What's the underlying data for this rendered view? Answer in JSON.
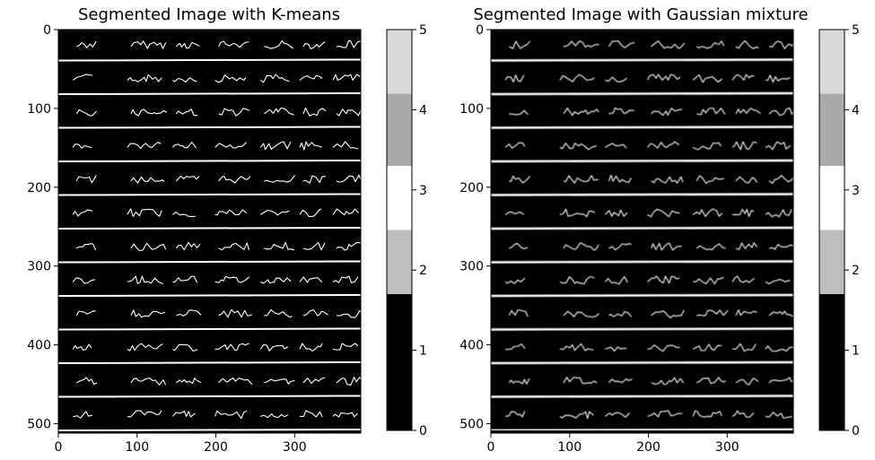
{
  "chart_data": [
    {
      "type": "heatmap",
      "title": "Segmented Image with K-means",
      "xlabel": "",
      "ylabel": "",
      "xlim": [
        0,
        384
      ],
      "ylim": [
        512,
        0
      ],
      "xticks": [
        0,
        100,
        200,
        300
      ],
      "yticks": [
        0,
        100,
        200,
        300,
        400,
        500
      ],
      "image_content": "handwritten lines repeating 'quick brown fox jumps over the lazy dog' in white on black",
      "text_lines": 12,
      "colorbar": {
        "ticks": [
          0,
          1,
          2,
          3,
          4,
          5
        ],
        "range": [
          0,
          5
        ],
        "levels": [
          {
            "from": 0,
            "to": 1.7,
            "color": "#000000"
          },
          {
            "from": 1.7,
            "to": 2.5,
            "color": "#bdbdbd"
          },
          {
            "from": 2.5,
            "to": 3.3,
            "color": "#ffffff"
          },
          {
            "from": 3.3,
            "to": 4.2,
            "color": "#a9a9a9"
          },
          {
            "from": 4.2,
            "to": 5,
            "color": "#d9d9d9"
          }
        ]
      }
    },
    {
      "type": "heatmap",
      "title": "Segmented Image with Gaussian mixture",
      "xlabel": "",
      "ylabel": "",
      "xlim": [
        0,
        384
      ],
      "ylim": [
        512,
        0
      ],
      "xticks": [
        0,
        100,
        200,
        300
      ],
      "yticks": [
        0,
        100,
        200,
        300,
        400,
        500
      ],
      "image_content": "handwritten lines repeating 'quick brown fox jumps over the lazy dog' in white on black",
      "text_lines": 12,
      "colorbar": {
        "ticks": [
          0,
          1,
          2,
          3,
          4,
          5
        ],
        "range": [
          0,
          5
        ],
        "levels": [
          {
            "from": 0,
            "to": 1.7,
            "color": "#000000"
          },
          {
            "from": 1.7,
            "to": 2.5,
            "color": "#bdbdbd"
          },
          {
            "from": 2.5,
            "to": 3.3,
            "color": "#ffffff"
          },
          {
            "from": 3.3,
            "to": 4.2,
            "color": "#a9a9a9"
          },
          {
            "from": 4.2,
            "to": 5,
            "color": "#d9d9d9"
          }
        ]
      }
    }
  ]
}
